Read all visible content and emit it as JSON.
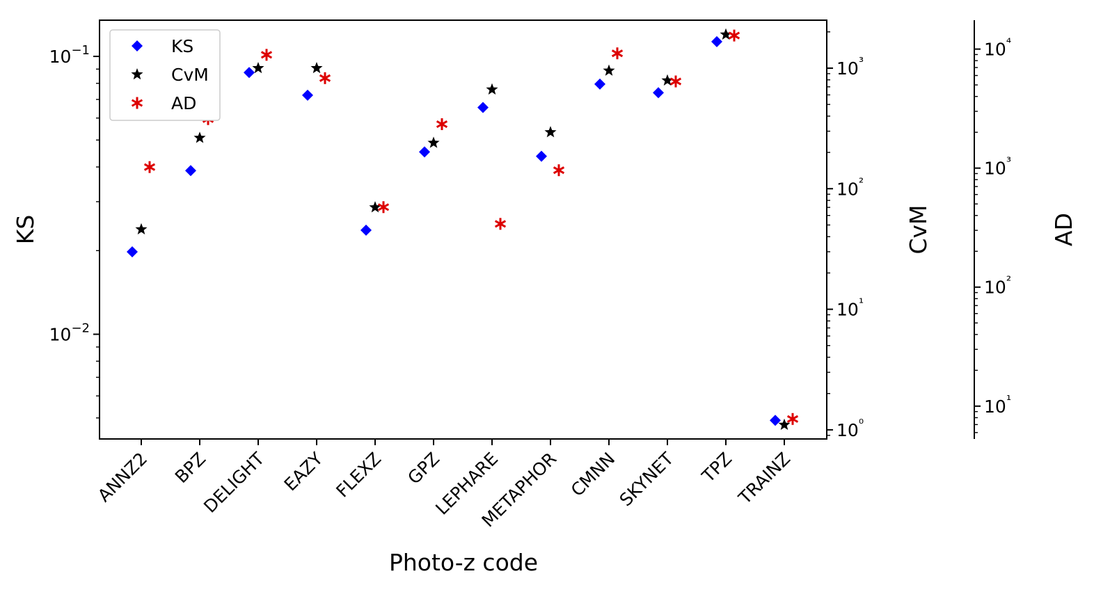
{
  "chart_data": {
    "type": "scatter",
    "xlabel": "Photo-z code",
    "categories": [
      "ANNZ2",
      "BPZ",
      "DELIGHT",
      "EAZY",
      "FLEXZ",
      "GPZ",
      "LEPHARE",
      "METAPHOR",
      "CMNN",
      "SKYNET",
      "TPZ",
      "TRAINZ"
    ],
    "axes": {
      "KS": {
        "label": "KS",
        "scale": "log",
        "range": [
          0.0042,
          0.135
        ],
        "major_ticks": [
          0.01,
          0.1
        ],
        "major_tick_labels": [
          "10−2",
          "10−1"
        ]
      },
      "CvM": {
        "label": "CvM",
        "scale": "log",
        "range": [
          0.84,
          2500
        ],
        "major_ticks": [
          1,
          10,
          100,
          1000
        ],
        "major_tick_labels": [
          "10⁰",
          "10¹",
          "10²",
          "10³"
        ]
      },
      "AD": {
        "label": "AD",
        "scale": "log",
        "range": [
          5.3,
          17500
        ],
        "major_ticks": [
          10,
          100,
          1000,
          10000
        ],
        "major_tick_labels": [
          "10¹",
          "10²",
          "10³",
          "10⁴"
        ]
      }
    },
    "series": [
      {
        "name": "KS",
        "axis": "KS",
        "marker": "diamond",
        "color": "#0000ff",
        "values": [
          0.0198,
          0.0388,
          0.0875,
          0.0725,
          0.0237,
          0.0453,
          0.0655,
          0.0437,
          0.0795,
          0.074,
          0.113,
          0.0049
        ]
      },
      {
        "name": "CvM",
        "axis": "CvM",
        "marker": "star",
        "color": "#000000",
        "values": [
          46,
          264,
          1000,
          1000,
          70,
          240,
          665,
          294,
          953,
          790,
          1900,
          1.1
        ]
      },
      {
        "name": "AD",
        "axis": "AD",
        "marker": "asterisk",
        "color": "#dd0000",
        "values": [
          1020,
          2580,
          8950,
          5700,
          470,
          2340,
          340,
          960,
          9210,
          5350,
          13000,
          7.8
        ]
      }
    ],
    "legend": {
      "location": "upper-left",
      "entries": [
        "KS",
        "CvM",
        "AD"
      ]
    },
    "grid": false
  }
}
